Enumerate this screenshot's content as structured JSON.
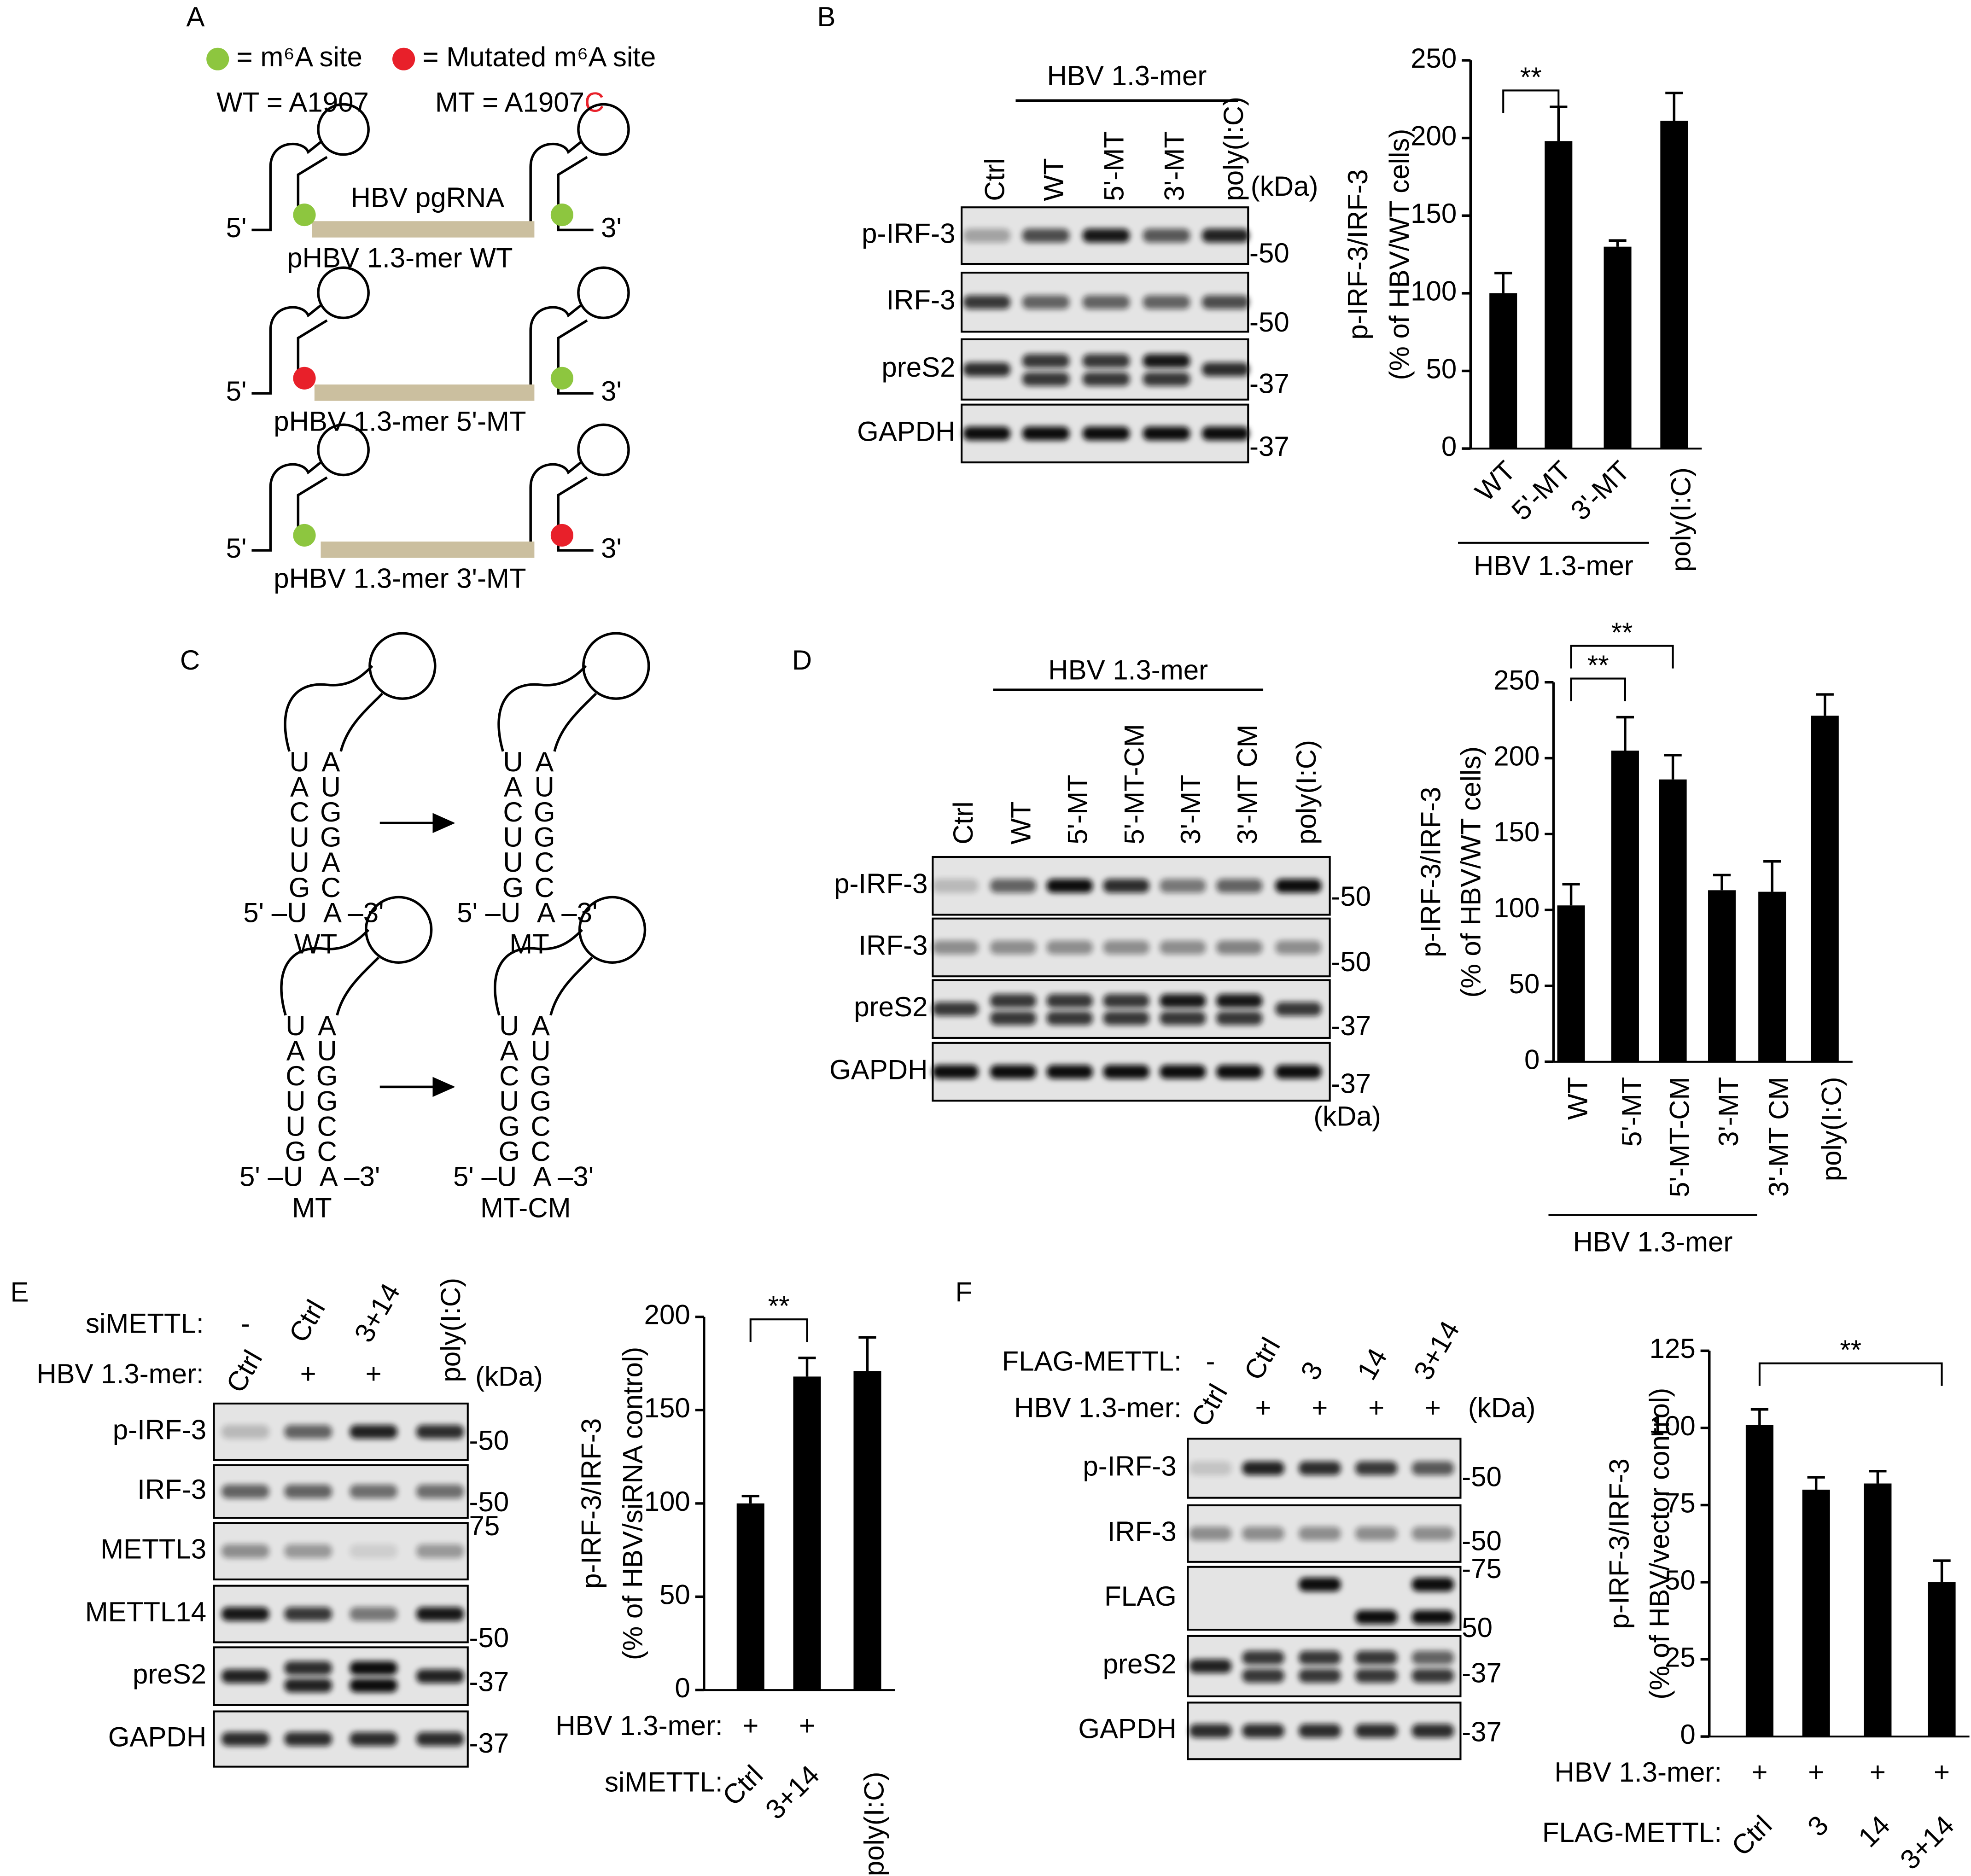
{
  "panel_labels": [
    "A",
    "B",
    "C",
    "D",
    "E",
    "F"
  ],
  "diagram_a": {
    "legend": [
      {
        "text": "= m⁶A site",
        "color": "#8dc63f"
      },
      {
        "text": "= Mutated m⁶A site",
        "color": "#e8202a"
      }
    ],
    "wt_site": "WT = A1907",
    "mt_site": "MT = A1907",
    "mt_base": {
      "text": "C",
      "color": "#e8202a"
    },
    "rna_label": "HBV pgRNA",
    "rna_color": "#cbbf9f",
    "five": "5'",
    "three": "3'",
    "constructs": [
      {
        "name": "pHBV 1.3-mer WT",
        "left": "#8dc63f",
        "right": "#8dc63f"
      },
      {
        "name": "pHBV 1.3-mer 5'-MT",
        "left": "#e8202a",
        "right": "#8dc63f"
      },
      {
        "name": "pHBV 1.3-mer 3'-MT",
        "left": "#8dc63f",
        "right": "#e8202a"
      }
    ]
  },
  "diagram_c": {
    "structures": [
      {
        "name": "WT",
        "pairs": [
          [
            "U",
            "A"
          ],
          [
            "A",
            "U"
          ],
          [
            "C",
            "G"
          ],
          [
            "U",
            "G"
          ],
          [
            "U",
            {
              "text": "A",
              "color": "#e8202a"
            }
          ],
          [
            "G",
            "C"
          ]
        ],
        "base": [
          "5' –U",
          "A –3'"
        ]
      },
      {
        "name": "MT",
        "pairs": [
          [
            "U",
            "A"
          ],
          [
            "A",
            "U"
          ],
          [
            "C",
            "G"
          ],
          [
            "U",
            "G"
          ],
          [
            "U",
            {
              "text": "C",
              "color": "#e8202a"
            }
          ],
          [
            "G",
            "C"
          ]
        ],
        "base": [
          "5' –U",
          "A –3'"
        ]
      },
      {
        "name": "MT",
        "pairs": [
          [
            "U",
            "A"
          ],
          [
            "A",
            "U"
          ],
          [
            "C",
            "G"
          ],
          [
            "U",
            "G"
          ],
          [
            "U",
            {
              "text": "C",
              "color": "#e8202a"
            }
          ],
          [
            "G",
            "C"
          ]
        ],
        "base": [
          "5' –U",
          "A –3'"
        ]
      },
      {
        "name": "MT-CM",
        "pairs": [
          [
            "U",
            "A"
          ],
          [
            "A",
            "U"
          ],
          [
            "C",
            "G"
          ],
          [
            "U",
            "G"
          ],
          [
            {
              "text": "G",
              "color": "#1e90d0"
            },
            {
              "text": "C",
              "color": "#e8202a"
            }
          ],
          [
            "G",
            "C"
          ]
        ],
        "base": [
          "5' –U",
          "A –3'"
        ]
      }
    ]
  },
  "blots": {
    "B": {
      "header": "HBV  1.3-mer",
      "lanes": [
        "Ctrl",
        "WT",
        "5'-MT",
        "3'-MT",
        "poly(I:C)"
      ],
      "unit": "(kDa)",
      "rows": [
        {
          "label": "p-IRF-3",
          "markers": [
            "-50"
          ]
        },
        {
          "label": "IRF-3",
          "markers": [
            "-50"
          ]
        },
        {
          "label": "preS2",
          "markers": [
            "-37"
          ]
        },
        {
          "label": "GAPDH",
          "markers": [
            "-37"
          ]
        }
      ]
    },
    "D": {
      "header": "HBV 1.3-mer",
      "lanes": [
        "Ctrl",
        "WT",
        "5'-MT",
        "5'-MT-CM",
        "3'-MT",
        "3'-MT CM",
        "poly(I:C)"
      ],
      "unit": "(kDa)",
      "rows": [
        {
          "label": "p-IRF-3",
          "markers": [
            "-50"
          ]
        },
        {
          "label": "IRF-3",
          "markers": [
            "-50"
          ]
        },
        {
          "label": "preS2",
          "markers": [
            "-37"
          ]
        },
        {
          "label": "GAPDH",
          "markers": [
            "-37"
          ]
        }
      ]
    },
    "E": {
      "header_rows": [
        {
          "label": "siMETTL:",
          "cells": [
            "-",
            "Ctrl",
            "3+14",
            "poly(I:C)"
          ]
        },
        {
          "label": "HBV 1.3-mer:",
          "cells": [
            "Ctrl",
            "+",
            "+",
            null
          ]
        }
      ],
      "unit": "(kDa)",
      "rows": [
        {
          "label": "p-IRF-3",
          "markers": [
            "-50"
          ]
        },
        {
          "label": "IRF-3",
          "markers": [
            "-50"
          ]
        },
        {
          "label": "METTL3",
          "markers": [
            "75"
          ]
        },
        {
          "label": "METTL14",
          "markers": [
            "-50"
          ]
        },
        {
          "label": "preS2",
          "markers": [
            "-37"
          ]
        },
        {
          "label": "GAPDH",
          "markers": [
            "-37"
          ]
        }
      ]
    },
    "F": {
      "header_rows": [
        {
          "label": "FLAG-METTL:",
          "cells": [
            "-",
            "Ctrl",
            "3",
            "14",
            "3+14"
          ]
        },
        {
          "label": "HBV 1.3-mer:",
          "cells": [
            "Ctrl",
            "+",
            "+",
            "+",
            "+"
          ]
        }
      ],
      "unit": "(kDa)",
      "rows": [
        {
          "label": "p-IRF-3",
          "markers": [
            "-50"
          ]
        },
        {
          "label": "IRF-3",
          "markers": [
            "-50"
          ]
        },
        {
          "label": "FLAG",
          "markers": [
            "-75",
            "50"
          ]
        },
        {
          "label": "preS2",
          "markers": [
            "-37"
          ]
        },
        {
          "label": "GAPDH",
          "markers": [
            "-37"
          ]
        }
      ]
    }
  },
  "chart_data": [
    {
      "type": "bar",
      "y_label": [
        "p-IRF-3/IRF-3",
        "(% of HBV/WT cells)"
      ],
      "categories": [
        "WT",
        "5'-MT",
        "3'-MT",
        "poly(I:C)"
      ],
      "values": [
        100,
        198,
        130,
        211
      ],
      "errors": [
        13,
        22,
        4,
        18
      ],
      "color": "#000000",
      "ylim": [
        0,
        250
      ],
      "yticks": [
        0,
        50,
        100,
        150,
        200,
        250
      ],
      "significance": [
        "**"
      ],
      "group_label": "HBV 1.3-mer"
    },
    {
      "type": "bar",
      "y_label": [
        "p-IRF-3/IRF-3",
        "(% of HBV/WT cells)"
      ],
      "categories": [
        "WT",
        "5'-MT",
        "5'-MT-CM",
        "3'-MT",
        "3'-MT CM",
        "poly(I:C)"
      ],
      "values": [
        103,
        205,
        186,
        113,
        112,
        228
      ],
      "errors": [
        14,
        22,
        16,
        10,
        20,
        14
      ],
      "color": "#000000",
      "ylim": [
        0,
        250
      ],
      "yticks": [
        0,
        50,
        100,
        150,
        200,
        250
      ],
      "significance": [
        "**",
        "**"
      ],
      "group_label": "HBV 1.3-mer"
    },
    {
      "type": "bar",
      "y_label": [
        "p-IRF-3/IRF-3",
        "(% of HBV/siRNA control)"
      ],
      "categories": [
        "Ctrl",
        "3+14",
        "poly(I:C)"
      ],
      "category_title": "siMETTL:",
      "condition": {
        "label": "HBV 1.3-mer:",
        "marks": [
          "+",
          "+",
          null
        ]
      },
      "values": [
        100,
        168,
        171
      ],
      "errors": [
        4,
        10,
        18
      ],
      "color": "#000000",
      "ylim": [
        0,
        200
      ],
      "yticks": [
        0,
        50,
        100,
        150,
        200
      ],
      "significance": [
        "**"
      ]
    },
    {
      "type": "bar",
      "y_label": [
        "p-IRF-3/IRF-3",
        "(% of HBV/vector control)"
      ],
      "categories": [
        "Ctrl",
        "3",
        "14",
        "3+14"
      ],
      "category_title": "FLAG-METTL:",
      "condition": {
        "label": "HBV 1.3-mer:",
        "marks": [
          "+",
          "+",
          "+",
          "+"
        ]
      },
      "values": [
        101,
        80,
        82,
        50
      ],
      "errors": [
        5,
        4,
        4,
        7
      ],
      "color": "#000000",
      "ylim": [
        0,
        125
      ],
      "yticks": [
        0,
        25,
        50,
        75,
        100,
        125
      ],
      "significance": [
        "**"
      ]
    }
  ]
}
